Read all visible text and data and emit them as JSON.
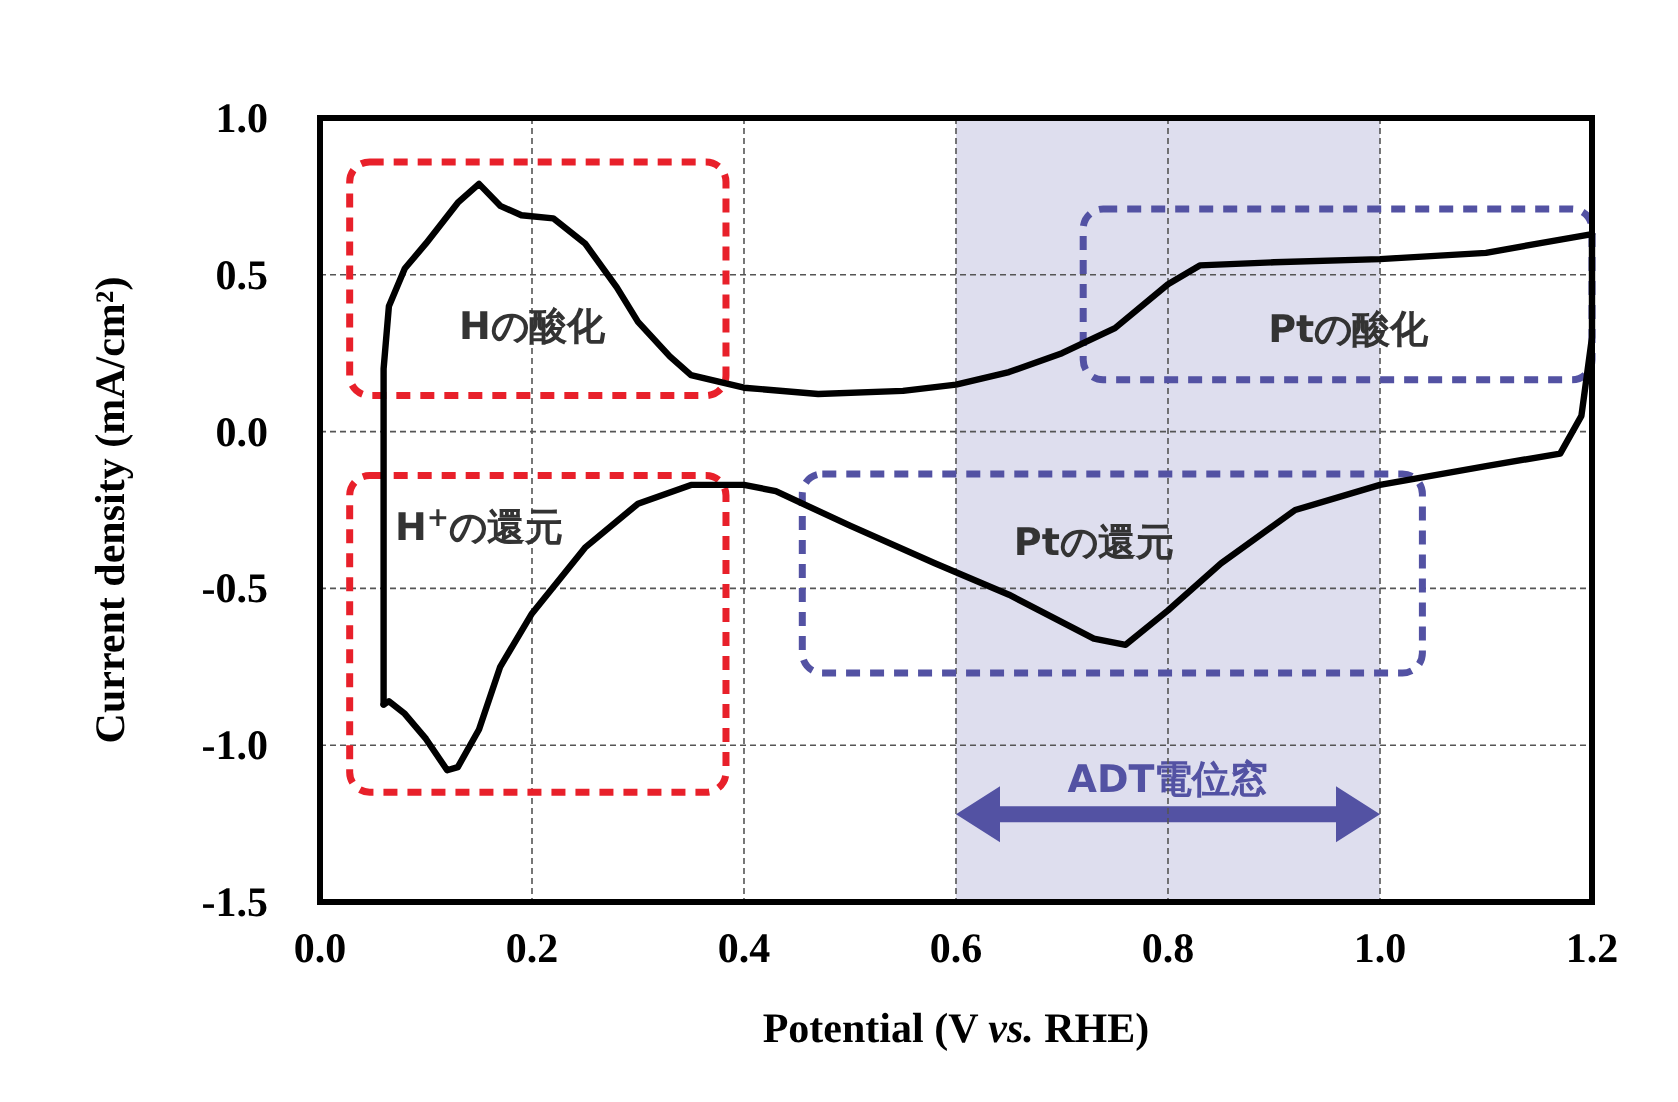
{
  "chart_data": {
    "type": "line",
    "xlabel": "Potential (V *vs.* RHE)",
    "ylabel": "Current density (mA/cm²)",
    "xlim": [
      0,
      1.2
    ],
    "ylim": [
      -1.5,
      1.0
    ],
    "xticks": [
      {
        "value": 0,
        "label": "0.0"
      },
      {
        "value": 0.2,
        "label": "0.2"
      },
      {
        "value": 0.4,
        "label": "0.4"
      },
      {
        "value": 0.6,
        "label": "0.6"
      },
      {
        "value": 0.8,
        "label": "0.8"
      },
      {
        "value": 1.0,
        "label": "1.0"
      },
      {
        "value": 1.2,
        "label": "1.2"
      }
    ],
    "yticks": [
      {
        "value": 1.0,
        "label": "1.0"
      },
      {
        "value": 0.5,
        "label": "0.5"
      },
      {
        "value": 0,
        "label": "0.0"
      },
      {
        "value": -0.5,
        "label": "-0.5"
      },
      {
        "value": -1.0,
        "label": "-1.0"
      },
      {
        "value": -1.5,
        "label": "-1.5"
      }
    ],
    "grid": true,
    "series": [
      {
        "color": "#000000",
        "x": [
          0.06,
          0.06,
          0.065,
          0.08,
          0.1,
          0.13,
          0.15,
          0.17,
          0.19,
          0.22,
          0.25,
          0.28,
          0.3,
          0.33,
          0.35,
          0.4,
          0.47,
          0.55,
          0.6,
          0.65,
          0.7,
          0.75,
          0.8,
          0.83,
          0.9,
          1.0,
          1.1,
          1.15,
          1.2
        ],
        "values": [
          -0.87,
          0.2,
          0.4,
          0.52,
          0.6,
          0.73,
          0.79,
          0.72,
          0.69,
          0.68,
          0.6,
          0.46,
          0.35,
          0.24,
          0.18,
          0.14,
          0.12,
          0.13,
          0.15,
          0.19,
          0.25,
          0.33,
          0.47,
          0.53,
          0.54,
          0.55,
          0.57,
          0.6,
          0.63
        ]
      },
      {
        "color": "#000000",
        "x": [
          1.2,
          1.2,
          1.19,
          1.17,
          1.1,
          1.0,
          0.92,
          0.85,
          0.8,
          0.76,
          0.73,
          0.65,
          0.58,
          0.5,
          0.43,
          0.4,
          0.35,
          0.3,
          0.25,
          0.2,
          0.17,
          0.15,
          0.13,
          0.12,
          0.1,
          0.08,
          0.065,
          0.06
        ],
        "values": [
          0.63,
          0.3,
          0.05,
          -0.07,
          -0.11,
          -0.17,
          -0.25,
          -0.42,
          -0.57,
          -0.68,
          -0.66,
          -0.52,
          -0.42,
          -0.3,
          -0.19,
          -0.17,
          -0.17,
          -0.23,
          -0.37,
          -0.58,
          -0.75,
          -0.95,
          -1.07,
          -1.08,
          -0.98,
          -0.9,
          -0.86,
          -0.87
        ]
      }
    ],
    "bands": [
      {
        "axis": "x",
        "from": 0.6,
        "to": 1.0,
        "color": "#dedeee",
        "label": "ADT電位窓"
      }
    ],
    "annotations": [
      "Hの酸化",
      "H$^{+}$の還元",
      "Ptの酸化",
      "Ptの還元"
    ]
  }
}
